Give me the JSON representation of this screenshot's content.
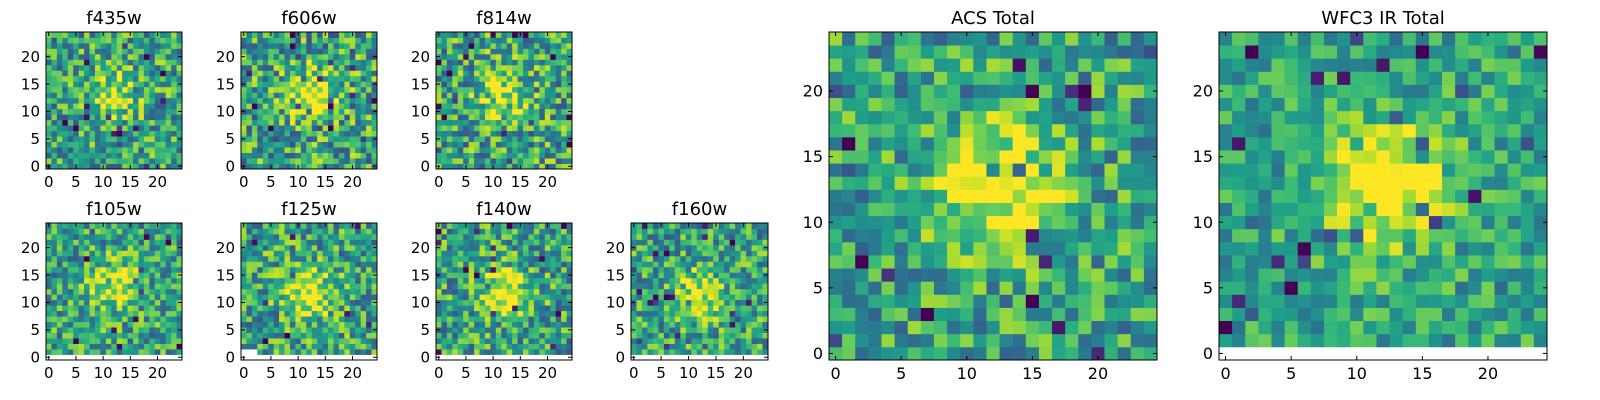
{
  "chart_data": [
    {
      "type": "heatmap",
      "title": "f435w",
      "xlabel": "",
      "ylabel": "",
      "xlim": [
        -0.5,
        24.5
      ],
      "ylim": [
        -0.5,
        24.5
      ],
      "xticks": [
        0,
        5,
        10,
        15,
        20
      ],
      "yticks": [
        0,
        5,
        10,
        15,
        20
      ],
      "grid": false,
      "colormap": "viridis",
      "grid_size": [
        25,
        25
      ],
      "blank_bottom_rows": 0,
      "blank_left_cols_in_blank_rows": 0,
      "peak": [
        12,
        13
      ],
      "peak_strength": 0.35,
      "noise_level": 0.32,
      "seed": 101
    },
    {
      "type": "heatmap",
      "title": "f606w",
      "xlabel": "",
      "ylabel": "",
      "xlim": [
        -0.5,
        24.5
      ],
      "ylim": [
        -0.5,
        24.5
      ],
      "xticks": [
        0,
        5,
        10,
        15,
        20
      ],
      "yticks": [
        0,
        5,
        10,
        15,
        20
      ],
      "grid": false,
      "colormap": "viridis",
      "grid_size": [
        25,
        25
      ],
      "blank_bottom_rows": 0,
      "blank_left_cols_in_blank_rows": 0,
      "peak": [
        12,
        13
      ],
      "peak_strength": 0.5,
      "noise_level": 0.35,
      "seed": 202
    },
    {
      "type": "heatmap",
      "title": "f814w",
      "xlabel": "",
      "ylabel": "",
      "xlim": [
        -0.5,
        24.5
      ],
      "ylim": [
        -0.5,
        24.5
      ],
      "xticks": [
        0,
        5,
        10,
        15,
        20
      ],
      "yticks": [
        0,
        5,
        10,
        15,
        20
      ],
      "grid": false,
      "colormap": "viridis",
      "grid_size": [
        25,
        25
      ],
      "blank_bottom_rows": 0,
      "blank_left_cols_in_blank_rows": 0,
      "peak": [
        12,
        13
      ],
      "peak_strength": 0.4,
      "noise_level": 0.34,
      "seed": 303
    },
    {
      "type": "heatmap",
      "title": "f105w",
      "xlabel": "",
      "ylabel": "",
      "xlim": [
        -0.5,
        24.5
      ],
      "ylim": [
        -0.5,
        24.5
      ],
      "xticks": [
        0,
        5,
        10,
        15,
        20
      ],
      "yticks": [
        0,
        5,
        10,
        15,
        20
      ],
      "grid": false,
      "colormap": "viridis",
      "grid_size": [
        25,
        25
      ],
      "blank_bottom_rows": 1,
      "blank_left_cols_in_blank_rows": 25,
      "peak": [
        12,
        13
      ],
      "peak_strength": 0.4,
      "noise_level": 0.3,
      "seed": 404
    },
    {
      "type": "heatmap",
      "title": "f125w",
      "xlabel": "",
      "ylabel": "",
      "xlim": [
        -0.5,
        24.5
      ],
      "ylim": [
        -0.5,
        24.5
      ],
      "xticks": [
        0,
        5,
        10,
        15,
        20
      ],
      "yticks": [
        0,
        5,
        10,
        15,
        20
      ],
      "grid": false,
      "colormap": "viridis",
      "grid_size": [
        25,
        25
      ],
      "blank_bottom_rows": 1,
      "blank_left_cols_in_blank_rows": 25,
      "blank_corner": [
        3,
        2
      ],
      "peak": [
        12,
        12
      ],
      "peak_strength": 0.45,
      "noise_level": 0.32,
      "seed": 505
    },
    {
      "type": "heatmap",
      "title": "f140w",
      "xlabel": "",
      "ylabel": "",
      "xlim": [
        -0.5,
        24.5
      ],
      "ylim": [
        -0.5,
        24.5
      ],
      "xticks": [
        0,
        5,
        10,
        15,
        20
      ],
      "yticks": [
        0,
        5,
        10,
        15,
        20
      ],
      "grid": false,
      "colormap": "viridis",
      "grid_size": [
        25,
        25
      ],
      "blank_bottom_rows": 1,
      "blank_left_cols_in_blank_rows": 25,
      "peak": [
        12,
        12
      ],
      "peak_strength": 0.45,
      "noise_level": 0.32,
      "seed": 606
    },
    {
      "type": "heatmap",
      "title": "f160w",
      "xlabel": "",
      "ylabel": "",
      "xlim": [
        -0.5,
        24.5
      ],
      "ylim": [
        -0.5,
        24.5
      ],
      "xticks": [
        0,
        5,
        10,
        15,
        20
      ],
      "yticks": [
        0,
        5,
        10,
        15,
        20
      ],
      "grid": false,
      "colormap": "viridis",
      "grid_size": [
        25,
        25
      ],
      "blank_bottom_rows": 1,
      "blank_left_cols_in_blank_rows": 25,
      "peak": [
        12,
        11
      ],
      "peak_strength": 0.4,
      "noise_level": 0.3,
      "seed": 707
    },
    {
      "type": "heatmap",
      "title": "ACS Total",
      "xlabel": "",
      "ylabel": "",
      "xlim": [
        -0.5,
        24.5
      ],
      "ylim": [
        -0.5,
        24.5
      ],
      "xticks": [
        0,
        5,
        10,
        15,
        20
      ],
      "yticks": [
        0,
        5,
        10,
        15,
        20
      ],
      "grid": false,
      "colormap": "viridis",
      "grid_size": [
        25,
        25
      ],
      "blank_bottom_rows": 0,
      "blank_left_cols_in_blank_rows": 0,
      "peak": [
        12,
        13
      ],
      "peak_strength": 0.55,
      "noise_level": 0.28,
      "seed": 808
    },
    {
      "type": "heatmap",
      "title": "WFC3 IR Total",
      "xlabel": "",
      "ylabel": "",
      "xlim": [
        -0.5,
        24.5
      ],
      "ylim": [
        -0.5,
        24.5
      ],
      "xticks": [
        0,
        5,
        10,
        15,
        20
      ],
      "yticks": [
        0,
        5,
        10,
        15,
        20
      ],
      "grid": false,
      "colormap": "viridis",
      "grid_size": [
        25,
        25
      ],
      "blank_bottom_rows": 1,
      "blank_left_cols_in_blank_rows": 25,
      "peak": [
        12,
        13
      ],
      "peak_strength": 0.55,
      "noise_level": 0.22,
      "seed": 909
    }
  ]
}
